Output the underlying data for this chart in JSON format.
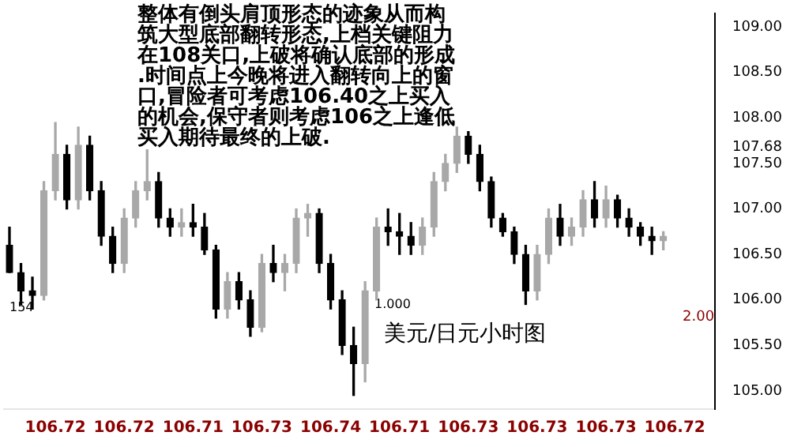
{
  "chart_data": {
    "type": "candlestick",
    "categories": [
      null,
      null,
      null,
      null,
      "106.72",
      null,
      null,
      null,
      null,
      null,
      "106.72",
      null,
      null,
      null,
      null,
      null,
      "106.71",
      null,
      null,
      null,
      null,
      null,
      "106.73",
      null,
      null,
      null,
      null,
      null,
      "106.74",
      null,
      null,
      null,
      null,
      null,
      "106.71",
      null,
      null,
      null,
      null,
      null,
      "106.73",
      null,
      null,
      null,
      null,
      null,
      "106.73",
      null,
      null,
      null,
      null,
      null,
      "106.73",
      null,
      null,
      null,
      null,
      null,
      "106.72",
      null,
      null,
      null
    ],
    "ohlc": [
      [
        106.6,
        106.8,
        106.3,
        106.3
      ],
      [
        106.3,
        106.4,
        105.95,
        106.1
      ],
      [
        106.1,
        106.25,
        105.9,
        106.05
      ],
      [
        106.05,
        107.3,
        106.0,
        107.2
      ],
      [
        107.2,
        107.95,
        107.1,
        107.6
      ],
      [
        107.6,
        107.7,
        107.0,
        107.1
      ],
      [
        107.1,
        107.9,
        107.0,
        107.7
      ],
      [
        107.7,
        107.8,
        107.1,
        107.2
      ],
      [
        107.2,
        107.3,
        106.6,
        106.7
      ],
      [
        106.7,
        106.8,
        106.3,
        106.4
      ],
      [
        106.4,
        107.0,
        106.3,
        106.9
      ],
      [
        106.9,
        107.3,
        106.8,
        107.2
      ],
      [
        107.2,
        107.65,
        107.1,
        107.3
      ],
      [
        107.3,
        107.4,
        106.8,
        106.9
      ],
      [
        106.9,
        107.0,
        106.7,
        106.8
      ],
      [
        106.8,
        107.0,
        106.7,
        106.85
      ],
      [
        106.85,
        107.05,
        106.7,
        106.8
      ],
      [
        106.8,
        106.95,
        106.5,
        106.55
      ],
      [
        106.55,
        106.6,
        105.8,
        105.9
      ],
      [
        105.9,
        106.3,
        105.8,
        106.2
      ],
      [
        106.2,
        106.3,
        105.9,
        106.0
      ],
      [
        106.0,
        106.1,
        105.6,
        105.7
      ],
      [
        105.7,
        106.5,
        105.65,
        106.4
      ],
      [
        106.4,
        106.6,
        106.2,
        106.3
      ],
      [
        106.3,
        106.5,
        106.1,
        106.4
      ],
      [
        106.4,
        107.0,
        106.3,
        106.9
      ],
      [
        106.9,
        107.05,
        106.7,
        106.95
      ],
      [
        106.95,
        107.0,
        106.3,
        106.4
      ],
      [
        106.4,
        106.5,
        105.9,
        106.0
      ],
      [
        106.0,
        106.1,
        105.4,
        105.5
      ],
      [
        105.5,
        105.7,
        104.95,
        105.3
      ],
      [
        105.3,
        106.2,
        105.1,
        106.1
      ],
      [
        106.1,
        106.9,
        106.0,
        106.8
      ],
      [
        106.8,
        107.0,
        106.6,
        106.75
      ],
      [
        106.75,
        106.95,
        106.5,
        106.7
      ],
      [
        106.7,
        106.85,
        106.5,
        106.6
      ],
      [
        106.6,
        106.9,
        106.5,
        106.8
      ],
      [
        106.8,
        107.4,
        106.7,
        107.3
      ],
      [
        107.3,
        107.6,
        107.2,
        107.5
      ],
      [
        107.5,
        107.9,
        107.4,
        107.8
      ],
      [
        107.8,
        107.85,
        107.5,
        107.6
      ],
      [
        107.6,
        107.7,
        107.2,
        107.3
      ],
      [
        107.3,
        107.35,
        106.8,
        106.9
      ],
      [
        106.9,
        106.95,
        106.7,
        106.75
      ],
      [
        106.75,
        106.8,
        106.4,
        106.5
      ],
      [
        106.5,
        106.6,
        105.95,
        106.1
      ],
      [
        106.1,
        106.6,
        106.0,
        106.5
      ],
      [
        106.5,
        107.0,
        106.4,
        106.9
      ],
      [
        106.9,
        107.05,
        106.6,
        106.7
      ],
      [
        106.7,
        106.9,
        106.6,
        106.8
      ],
      [
        106.8,
        107.2,
        106.7,
        107.1
      ],
      [
        107.1,
        107.3,
        106.8,
        106.9
      ],
      [
        106.9,
        107.25,
        106.8,
        107.1
      ],
      [
        107.1,
        107.15,
        106.8,
        106.9
      ],
      [
        106.9,
        107.0,
        106.7,
        106.8
      ],
      [
        106.8,
        106.85,
        106.6,
        106.7
      ],
      [
        106.7,
        106.8,
        106.5,
        106.65
      ],
      [
        106.65,
        106.75,
        106.55,
        106.7
      ],
      null,
      null,
      null,
      null
    ],
    "colors": [
      "#000000",
      "#000000",
      "#000000",
      "#a8a8a8",
      "#a8a8a8",
      "#000000",
      "#a8a8a8",
      "#000000",
      "#000000",
      "#000000",
      "#a8a8a8",
      "#a8a8a8",
      "#a8a8a8",
      "#000000",
      "#000000",
      "#a8a8a8",
      "#000000",
      "#000000",
      "#000000",
      "#a8a8a8",
      "#000000",
      "#000000",
      "#a8a8a8",
      "#000000",
      "#a8a8a8",
      "#a8a8a8",
      "#a8a8a8",
      "#000000",
      "#000000",
      "#000000",
      "#000000",
      "#a8a8a8",
      "#a8a8a8",
      "#000000",
      "#000000",
      "#000000",
      "#a8a8a8",
      "#a8a8a8",
      "#a8a8a8",
      "#a8a8a8",
      "#000000",
      "#000000",
      "#000000",
      "#000000",
      "#000000",
      "#000000",
      "#a8a8a8",
      "#a8a8a8",
      "#000000",
      "#a8a8a8",
      "#a8a8a8",
      "#000000",
      "#a8a8a8",
      "#000000",
      "#000000",
      "#000000",
      "#000000",
      "#a8a8a8",
      null,
      null,
      null,
      null
    ],
    "ylim": [
      104.8,
      109.15
    ],
    "yticks": [
      {
        "value": 105,
        "label": "105.00"
      },
      {
        "value": 105.5,
        "label": "105.50"
      },
      {
        "value": 106,
        "label": "106.00"
      },
      {
        "value": 106.5,
        "label": "106.50"
      },
      {
        "value": 107,
        "label": "107.00"
      },
      {
        "value": 107.5,
        "label": "107.50"
      },
      {
        "value": 107.68,
        "label": "107.68"
      },
      {
        "value": 108,
        "label": "108.00"
      },
      {
        "value": 108.5,
        "label": "108.50"
      },
      {
        "value": 109,
        "label": "109.00"
      }
    ],
    "grid": false,
    "legend": false,
    "annotations": [
      "整体有倒头肩顶形态的迹象从而构筑大型底部翻转形态,上档关键阻力在108关口,上破将确认底部的形成.时间点上今晚将进入翻转向上的窗口,冒险者可考虑106.40之上买入的机会,保守者则考虑106之上逢低买入期待最终的上破.",
      "美元/日元小时图",
      "154",
      "1.000",
      "2.00"
    ]
  }
}
